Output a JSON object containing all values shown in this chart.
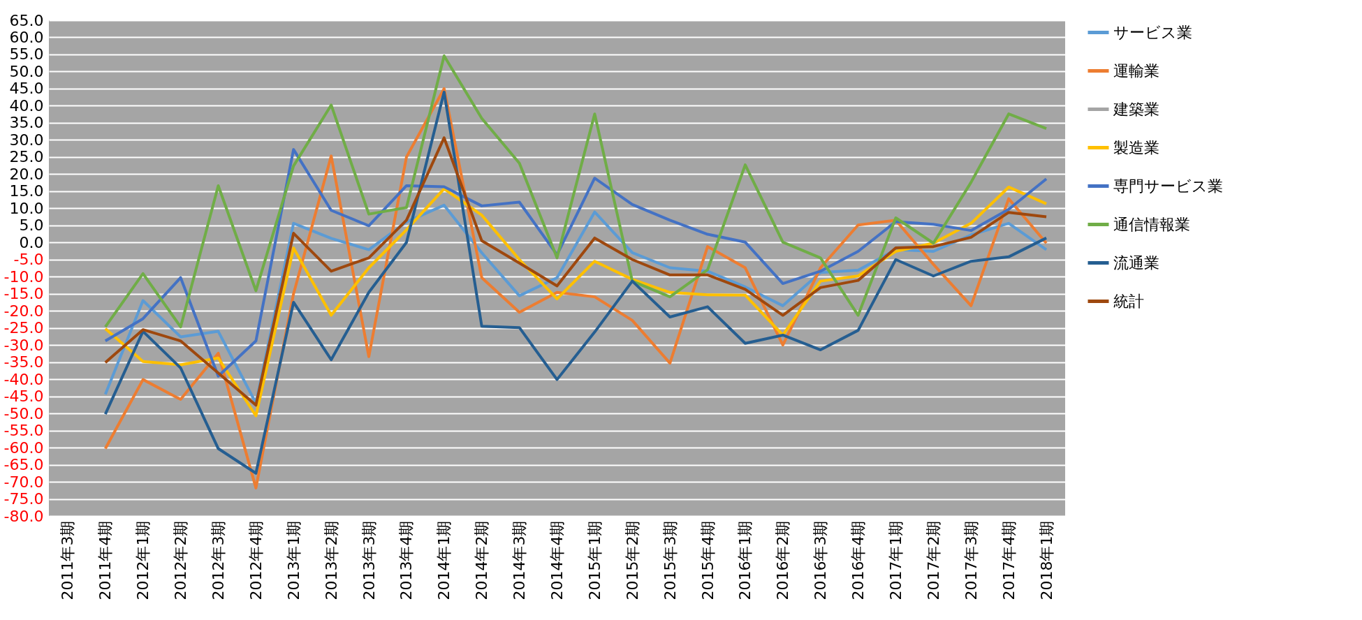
{
  "chart_data": {
    "type": "line",
    "categories": [
      "2011年3期",
      "2011年4期",
      "2012年1期",
      "2012年2期",
      "2012年3期",
      "2012年4期",
      "2013年1期",
      "2013年2期",
      "2013年3期",
      "2013年4期",
      "2014年1期",
      "2014年2期",
      "2014年3期",
      "2014年4期",
      "2015年1期",
      "2015年2期",
      "2015年3期",
      "2015年4期",
      "2016年1期",
      "2016年2期",
      "2016年3期",
      "2016年4期",
      "2017年1期",
      "2017年2期",
      "2017年3期",
      "2017年4期",
      "2018年1期"
    ],
    "series": [
      {
        "name": "サービス業",
        "color": "#5b9bd5",
        "values": [
          null,
          -44.4,
          -17,
          -27.6,
          -26,
          -47,
          5.6,
          1.2,
          -2.1,
          6,
          10.9,
          -3,
          -15.6,
          -10.3,
          8.9,
          -3,
          -7.4,
          -8.4,
          -13,
          -18.5,
          -8.8,
          -8.1,
          -2.1,
          -2.6,
          2.2,
          5.6,
          -2.1
        ]
      },
      {
        "name": "運輸業",
        "color": "#ed7d31",
        "values": [
          null,
          -60.3,
          -40.1,
          -45.9,
          -32.4,
          -71.8,
          -15,
          25.3,
          -33.4,
          25,
          45,
          -10.3,
          -20.4,
          -14.6,
          -15.9,
          -22.8,
          -35.3,
          -1.2,
          -7.4,
          -30,
          -7.4,
          5.1,
          6.5,
          -6.4,
          -18.5,
          12.8,
          -0.2
        ]
      },
      {
        "name": "建築業",
        "color": "#a5a5a5",
        "values": [
          null,
          null,
          null,
          null,
          null,
          null,
          null,
          null,
          null,
          null,
          null,
          null,
          null,
          null,
          null,
          null,
          null,
          null,
          null,
          null,
          null,
          null,
          null,
          null,
          null,
          null,
          null
        ]
      },
      {
        "name": "製造業",
        "color": "#ffc000",
        "values": [
          null,
          -25.2,
          -34.8,
          -35.8,
          -33.8,
          -50.7,
          -1.6,
          -21.3,
          -7.4,
          3.7,
          15.7,
          8,
          -5,
          -16.5,
          -5.5,
          -10.8,
          -14.6,
          -15.3,
          -15.4,
          -27.1,
          -11.3,
          -9.8,
          -2.6,
          -0.2,
          5.6,
          16.2,
          11.3
        ]
      },
      {
        "name": "専門サービス業",
        "color": "#4472c4",
        "values": [
          null,
          -28.8,
          -22.3,
          -10.3,
          -39.1,
          -28.8,
          27.2,
          9.4,
          4.9,
          16.6,
          16.3,
          10.7,
          11.8,
          -3.6,
          18.8,
          11.1,
          6.5,
          2.4,
          0.1,
          -12,
          -8.4,
          -2.6,
          6.1,
          5.3,
          3.5,
          9.7,
          18.6
        ]
      },
      {
        "name": "通信情報業",
        "color": "#70ad47",
        "values": [
          null,
          -24.7,
          -9.1,
          -24.7,
          16.6,
          -14.1,
          22.4,
          40.2,
          8.3,
          10.2,
          54.6,
          36.3,
          23.2,
          -4.5,
          37.6,
          -11.3,
          -15.9,
          -8,
          22.7,
          0.1,
          -4.5,
          -21.3,
          7.2,
          -0.2,
          17.6,
          37.6,
          33.3
        ]
      },
      {
        "name": "流通業",
        "color": "#255e91",
        "values": [
          null,
          -50.2,
          -26,
          -36.7,
          -60.3,
          -67.5,
          -17.5,
          -34.3,
          -14.6,
          0,
          44,
          -24.5,
          -24.9,
          -40.1,
          -26.2,
          -11.3,
          -21.8,
          -18.8,
          -29.5,
          -27.1,
          -31.4,
          -25.7,
          -5,
          -9.8,
          -5.5,
          -4.2,
          1.3
        ]
      },
      {
        "name": "統計",
        "color": "#9e480e",
        "values": [
          null,
          -35.1,
          -25.5,
          -28.8,
          -38.2,
          -47.6,
          2.7,
          -8.4,
          -4.5,
          6.5,
          30.6,
          0.5,
          -6,
          -12.7,
          1.3,
          -5,
          -9.5,
          -9.5,
          -13.7,
          -21.3,
          -13.2,
          -11.1,
          -1.6,
          -1.2,
          1.5,
          8.8,
          7.5
        ]
      }
    ],
    "ylim": [
      -80,
      65
    ],
    "yticks": [
      {
        "value": 65,
        "label": "65.0"
      },
      {
        "value": 60,
        "label": "60.0"
      },
      {
        "value": 55,
        "label": "55.0"
      },
      {
        "value": 50,
        "label": "50.0"
      },
      {
        "value": 45,
        "label": "45.0"
      },
      {
        "value": 40,
        "label": "40.0"
      },
      {
        "value": 35,
        "label": "35.0"
      },
      {
        "value": 30,
        "label": "30.0"
      },
      {
        "value": 25,
        "label": "25.0"
      },
      {
        "value": 20,
        "label": "20.0"
      },
      {
        "value": 15,
        "label": "15.0"
      },
      {
        "value": 10,
        "label": "10.0"
      },
      {
        "value": 5,
        "label": "5.0"
      },
      {
        "value": 0,
        "label": "0.0"
      },
      {
        "value": -5,
        "label": "-5.0"
      },
      {
        "value": -10,
        "label": "-10.0"
      },
      {
        "value": -15,
        "label": "-15.0"
      },
      {
        "value": -20,
        "label": "-20.0"
      },
      {
        "value": -25,
        "label": "-25.0"
      },
      {
        "value": -30,
        "label": "-30.0"
      },
      {
        "value": -35,
        "label": "-35.0"
      },
      {
        "value": -40,
        "label": "-40.0"
      },
      {
        "value": -45,
        "label": "-45.0"
      },
      {
        "value": -50,
        "label": "-50.0"
      },
      {
        "value": -55,
        "label": "-55.0"
      },
      {
        "value": -60,
        "label": "-60.0"
      },
      {
        "value": -65,
        "label": "-65.0"
      },
      {
        "value": -70,
        "label": "-70.0"
      },
      {
        "value": -75,
        "label": "-75.0"
      },
      {
        "value": -80,
        "label": "-80.0"
      }
    ],
    "grid": "y",
    "legend": "right",
    "marker": "none",
    "line_style": "solid"
  }
}
